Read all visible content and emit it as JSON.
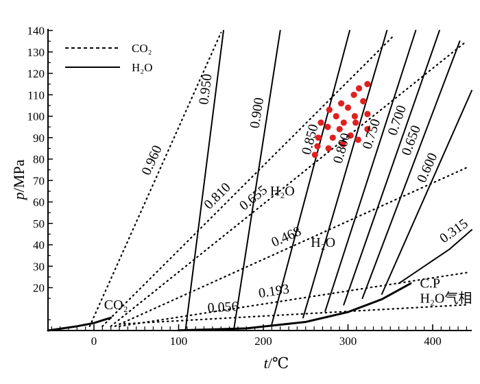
{
  "chart_data": {
    "type": "line",
    "title": "",
    "xlabel_var": "t",
    "xlabel_unit": "/℃",
    "ylabel_var": "p",
    "ylabel_unit": "/MPa",
    "xlim": [
      -55,
      450
    ],
    "ylim": [
      0,
      140
    ],
    "x_ticks": [
      0,
      100,
      200,
      300,
      400
    ],
    "y_ticks": [
      20,
      30,
      40,
      50,
      60,
      70,
      80,
      90,
      100,
      110,
      120,
      130,
      140
    ],
    "legend": {
      "position": "top-left",
      "entries": [
        {
          "label": "CO₂",
          "style": "dashed"
        },
        {
          "label": "H₂O",
          "style": "solid"
        }
      ]
    },
    "series": [
      {
        "name": "CO₂ 0.960",
        "fluid": "CO2",
        "label": "0.960",
        "style": "dotted",
        "x": [
          -5,
          150
        ],
        "y": [
          2,
          139
        ]
      },
      {
        "name": "CO₂ 0.810",
        "fluid": "CO2",
        "label": "0.810",
        "style": "dotted",
        "x": [
          10,
          355
        ],
        "y": [
          2,
          138
        ]
      },
      {
        "name": "CO₂ 0.655",
        "fluid": "CO2",
        "label": "0.655",
        "style": "dotted",
        "x": [
          20,
          440
        ],
        "y": [
          2,
          135
        ]
      },
      {
        "name": "CO₂ 0.468",
        "fluid": "CO2",
        "label": "0.468",
        "style": "dotted",
        "x": [
          25,
          440
        ],
        "y": [
          2,
          76
        ]
      },
      {
        "name": "CO₂ 0.193",
        "fluid": "CO2",
        "label": "0.193",
        "style": "dotted",
        "x": [
          30,
          440
        ],
        "y": [
          2,
          27
        ]
      },
      {
        "name": "CO₂ 0.056",
        "fluid": "CO2",
        "label": "0.056",
        "style": "dotted",
        "x": [
          30,
          440
        ],
        "y": [
          3,
          12
        ]
      },
      {
        "name": "H₂O 0.950",
        "fluid": "H2O",
        "label": "0.950",
        "style": "solid",
        "x": [
          108,
          153
        ],
        "y": [
          0,
          140
        ]
      },
      {
        "name": "H₂O 0.900",
        "fluid": "H2O",
        "label": "0.900",
        "style": "solid",
        "x": [
          165,
          220
        ],
        "y": [
          0,
          140
        ]
      },
      {
        "name": "H₂O 0.850",
        "fluid": "H2O",
        "label": "0.850",
        "style": "solid",
        "x": [
          210,
          302
        ],
        "y": [
          3,
          140
        ]
      },
      {
        "name": "H₂O 0.800",
        "fluid": "H2O",
        "label": "0.800",
        "style": "solid",
        "x": [
          247,
          346
        ],
        "y": [
          6,
          140
        ]
      },
      {
        "name": "H₂O 0.750",
        "fluid": "H2O",
        "label": "0.750",
        "style": "solid",
        "x": [
          273,
          380
        ],
        "y": [
          9,
          140
        ]
      },
      {
        "name": "H₂O 0.700",
        "fluid": "H2O",
        "label": "0.700",
        "style": "solid",
        "x": [
          295,
          408
        ],
        "y": [
          12,
          140
        ]
      },
      {
        "name": "H₂O 0.650",
        "fluid": "H2O",
        "label": "0.650",
        "style": "solid",
        "x": [
          317,
          432
        ],
        "y": [
          15,
          135
        ]
      },
      {
        "name": "H₂O 0.600",
        "fluid": "H2O",
        "label": "0.600",
        "style": "solid",
        "x": [
          340,
          448
        ],
        "y": [
          17,
          112
        ]
      },
      {
        "name": "H₂O 0.315",
        "fluid": "H2O",
        "label": "0.315",
        "style": "solid",
        "x": [
          360,
          390,
          420,
          448
        ],
        "y": [
          22,
          30,
          38,
          47
        ]
      },
      {
        "name": "CO₂ saturation curve",
        "style": "solid",
        "x": [
          -55,
          -20,
          0,
          20
        ],
        "y": [
          0,
          2,
          3.5,
          6
        ]
      },
      {
        "name": "H₂O saturation curve",
        "style": "solid",
        "x": [
          100,
          180,
          250,
          300,
          340,
          374
        ],
        "y": [
          0.1,
          1,
          4,
          8.6,
          14.6,
          22
        ]
      }
    ],
    "fluid_inclusions": {
      "color": "#e02020",
      "points": [
        [
          323,
          115
        ],
        [
          313,
          113
        ],
        [
          307,
          110
        ],
        [
          318,
          107
        ],
        [
          292,
          106
        ],
        [
          278,
          103
        ],
        [
          300,
          104
        ],
        [
          308,
          100
        ],
        [
          323,
          101
        ],
        [
          286,
          100
        ],
        [
          295,
          97
        ],
        [
          268,
          97
        ],
        [
          309,
          97
        ],
        [
          276,
          95
        ],
        [
          290,
          94
        ],
        [
          323,
          94
        ],
        [
          303,
          91
        ],
        [
          282,
          90
        ],
        [
          265,
          90
        ],
        [
          312,
          89
        ],
        [
          294,
          87
        ],
        [
          264,
          86
        ],
        [
          277,
          85
        ],
        [
          261,
          82
        ]
      ]
    },
    "annotations": [
      {
        "text": "H₂O",
        "x": 208,
        "y": 63
      },
      {
        "text": "H₂O",
        "x": 256,
        "y": 39
      },
      {
        "text": "CO₂",
        "x": 12,
        "y": 10
      },
      {
        "text": "C.P",
        "x": 385,
        "y": 20
      },
      {
        "text": "H₂O气相",
        "x": 385,
        "y": 13
      }
    ],
    "colors": {
      "axis": "#000000",
      "lines": "#000000",
      "points": "#e02020"
    }
  }
}
